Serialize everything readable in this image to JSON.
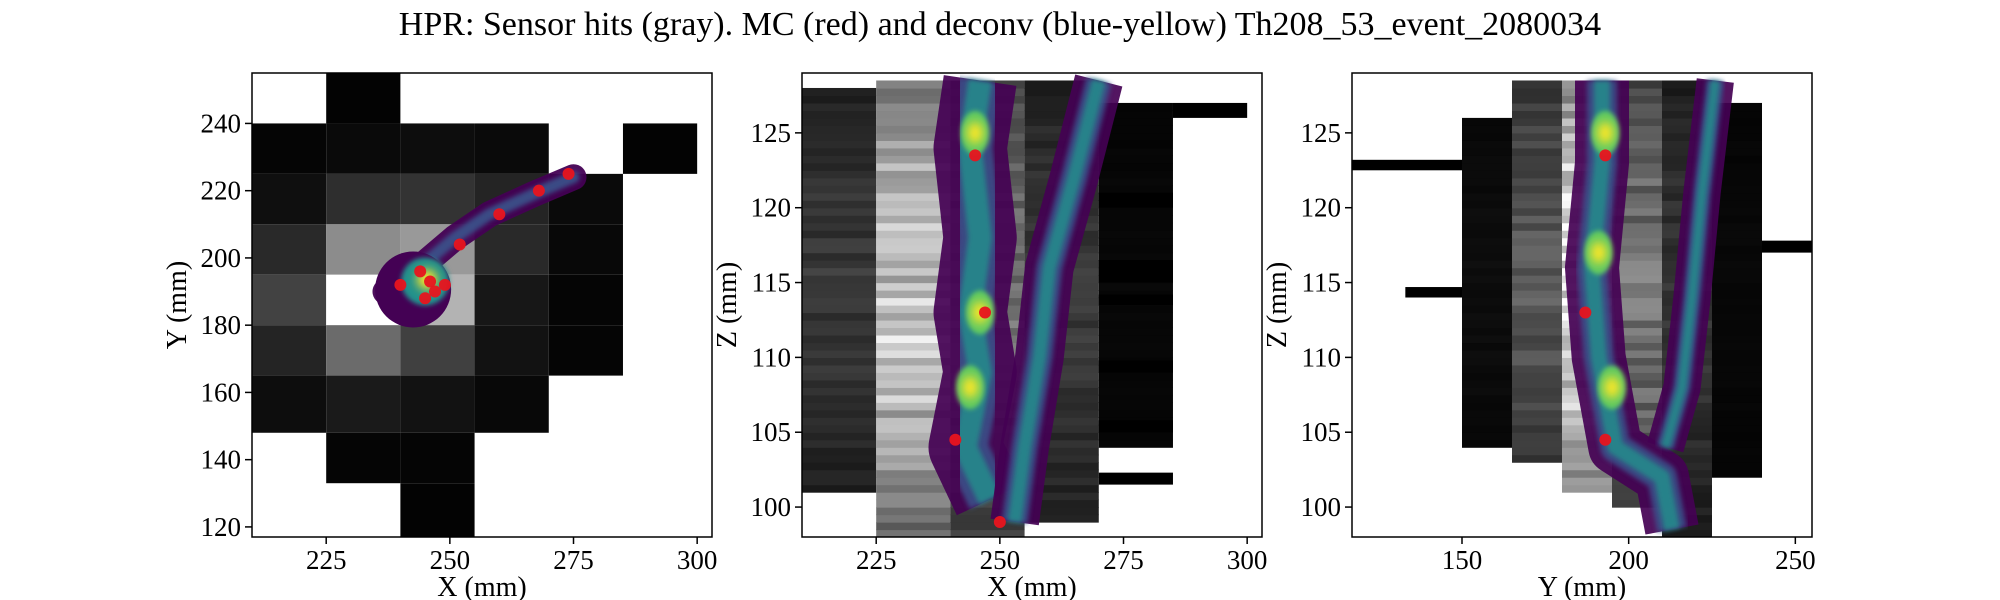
{
  "figure": {
    "title": "HPR: Sensor hits (gray). MC (red) and deconv (blue-yellow) Th208_53_event_2080034"
  },
  "colors": {
    "mc": "#e8141e",
    "deconv_low": "#440154",
    "deconv_mid": "#21918c",
    "deconv_high": "#fde725"
  },
  "chart_data": [
    {
      "type": "heatmap",
      "name": "panel-xy",
      "xlabel": "X (mm)",
      "ylabel": "Y (mm)",
      "xlim": [
        210,
        303
      ],
      "ylim": [
        117,
        255
      ],
      "xticks": [
        225,
        250,
        275,
        300
      ],
      "yticks": [
        120,
        140,
        160,
        180,
        200,
        220,
        240
      ],
      "sensor_hits": [
        {
          "x0": 210,
          "x1": 225,
          "y0": 225,
          "y1": 240,
          "v": 0.02
        },
        {
          "x0": 210,
          "x1": 225,
          "y0": 210,
          "y1": 225,
          "v": 0.06
        },
        {
          "x0": 210,
          "x1": 225,
          "y0": 195,
          "y1": 210,
          "v": 0.16
        },
        {
          "x0": 210,
          "x1": 225,
          "y0": 180,
          "y1": 195,
          "v": 0.26
        },
        {
          "x0": 210,
          "x1": 225,
          "y0": 165,
          "y1": 180,
          "v": 0.14
        },
        {
          "x0": 210,
          "x1": 225,
          "y0": 148,
          "y1": 165,
          "v": 0.05
        },
        {
          "x0": 225,
          "x1": 240,
          "y0": 240,
          "y1": 255,
          "v": 0.01
        },
        {
          "x0": 225,
          "x1": 240,
          "y0": 225,
          "y1": 240,
          "v": 0.04
        },
        {
          "x0": 225,
          "x1": 240,
          "y0": 210,
          "y1": 225,
          "v": 0.18
        },
        {
          "x0": 225,
          "x1": 240,
          "y0": 195,
          "y1": 210,
          "v": 0.55
        },
        {
          "x0": 225,
          "x1": 240,
          "y0": 180,
          "y1": 195,
          "v": 1.0
        },
        {
          "x0": 225,
          "x1": 240,
          "y0": 165,
          "y1": 180,
          "v": 0.42
        },
        {
          "x0": 225,
          "x1": 240,
          "y0": 148,
          "y1": 165,
          "v": 0.1
        },
        {
          "x0": 225,
          "x1": 240,
          "y0": 133,
          "y1": 148,
          "v": 0.02
        },
        {
          "x0": 240,
          "x1": 255,
          "y0": 225,
          "y1": 240,
          "v": 0.05
        },
        {
          "x0": 240,
          "x1": 255,
          "y0": 210,
          "y1": 225,
          "v": 0.2
        },
        {
          "x0": 240,
          "x1": 255,
          "y0": 195,
          "y1": 210,
          "v": 0.6
        },
        {
          "x0": 240,
          "x1": 255,
          "y0": 180,
          "y1": 195,
          "v": 0.7
        },
        {
          "x0": 240,
          "x1": 255,
          "y0": 165,
          "y1": 180,
          "v": 0.25
        },
        {
          "x0": 240,
          "x1": 255,
          "y0": 148,
          "y1": 165,
          "v": 0.07
        },
        {
          "x0": 240,
          "x1": 255,
          "y0": 133,
          "y1": 148,
          "v": 0.02
        },
        {
          "x0": 240,
          "x1": 255,
          "y0": 117,
          "y1": 133,
          "v": 0.01
        },
        {
          "x0": 255,
          "x1": 270,
          "y0": 225,
          "y1": 240,
          "v": 0.04
        },
        {
          "x0": 255,
          "x1": 270,
          "y0": 210,
          "y1": 225,
          "v": 0.14
        },
        {
          "x0": 255,
          "x1": 270,
          "y0": 195,
          "y1": 210,
          "v": 0.16
        },
        {
          "x0": 255,
          "x1": 270,
          "y0": 180,
          "y1": 195,
          "v": 0.09
        },
        {
          "x0": 255,
          "x1": 270,
          "y0": 165,
          "y1": 180,
          "v": 0.07
        },
        {
          "x0": 255,
          "x1": 270,
          "y0": 148,
          "y1": 165,
          "v": 0.03
        },
        {
          "x0": 270,
          "x1": 285,
          "y0": 210,
          "y1": 225,
          "v": 0.04
        },
        {
          "x0": 270,
          "x1": 285,
          "y0": 195,
          "y1": 210,
          "v": 0.03
        },
        {
          "x0": 270,
          "x1": 285,
          "y0": 180,
          "y1": 195,
          "v": 0.02
        },
        {
          "x0": 270,
          "x1": 285,
          "y0": 165,
          "y1": 180,
          "v": 0.02
        },
        {
          "x0": 285,
          "x1": 300,
          "y0": 225,
          "y1": 240,
          "v": 0.01
        }
      ],
      "deconv_path": [
        [
          237,
          190
        ],
        [
          243,
          196
        ],
        [
          251,
          206
        ],
        [
          258,
          213
        ],
        [
          267,
          219
        ],
        [
          275,
          224
        ]
      ],
      "deconv_peak": [
        245,
        193
      ],
      "mc_points": [
        [
          240,
          192
        ],
        [
          244,
          196
        ],
        [
          246,
          193
        ],
        [
          247,
          190
        ],
        [
          249,
          192
        ],
        [
          245,
          188
        ],
        [
          252,
          204
        ],
        [
          260,
          213
        ],
        [
          268,
          220
        ],
        [
          274,
          225
        ]
      ]
    },
    {
      "type": "heatmap",
      "name": "panel-xz",
      "xlabel": "X (mm)",
      "ylabel": "Z (mm)",
      "xlim": [
        210,
        303
      ],
      "ylim": [
        98,
        129
      ],
      "xticks": [
        225,
        250,
        275,
        300
      ],
      "yticks": [
        100,
        105,
        110,
        115,
        120,
        125
      ],
      "sensor_columns": [
        {
          "x0": 210,
          "x1": 225,
          "z0": 101,
          "z1": 128,
          "v": 0.22
        },
        {
          "x0": 225,
          "x1": 240,
          "z0": 98,
          "z1": 128.5,
          "v": 0.78
        },
        {
          "x0": 240,
          "x1": 255,
          "z0": 98,
          "z1": 128.5,
          "v": 0.45
        },
        {
          "x0": 255,
          "x1": 270,
          "z0": 99,
          "z1": 128.5,
          "v": 0.22
        },
        {
          "x0": 270,
          "x1": 285,
          "z0": 104,
          "z1": 127,
          "v": 0.03
        }
      ],
      "sensor_stripes": [
        {
          "x0": 285,
          "x1": 300,
          "z0": 126,
          "z1": 127
        },
        {
          "x0": 270,
          "x1": 285,
          "z0": 120,
          "z1": 121
        },
        {
          "x0": 270,
          "x1": 285,
          "z0": 115,
          "z1": 116.5
        },
        {
          "x0": 270,
          "x1": 285,
          "z0": 113.5,
          "z1": 114.2
        },
        {
          "x0": 270,
          "x1": 285,
          "z0": 109,
          "z1": 109.8
        },
        {
          "x0": 270,
          "x1": 285,
          "z0": 105,
          "z1": 105.8
        },
        {
          "x0": 270,
          "x1": 285,
          "z0": 101.5,
          "z1": 102.3
        }
      ],
      "deconv_tracks": [
        {
          "width": 12,
          "points": [
            [
              246,
              128.5
            ],
            [
              244,
              124
            ],
            [
              246,
              118
            ],
            [
              244,
              113
            ],
            [
              246,
              109
            ],
            [
              243,
              104
            ],
            [
              248,
              100.5
            ]
          ]
        },
        {
          "width": 7,
          "points": [
            [
              270,
              128.5
            ],
            [
              265,
              122
            ],
            [
              260,
              116
            ],
            [
              258,
              110
            ],
            [
              255,
              104
            ],
            [
              253,
              99
            ]
          ]
        }
      ],
      "deconv_peaks": [
        [
          245,
          125
        ],
        [
          246,
          113
        ],
        [
          244,
          108
        ]
      ],
      "mc_points": [
        [
          245,
          123.5
        ],
        [
          247,
          113
        ],
        [
          241,
          104.5
        ],
        [
          250,
          99
        ]
      ]
    },
    {
      "type": "heatmap",
      "name": "panel-yz",
      "xlabel": "Y (mm)",
      "ylabel": "Z (mm)",
      "xlim": [
        117,
        255
      ],
      "ylim": [
        98,
        129
      ],
      "xticks": [
        150,
        200,
        250
      ],
      "yticks": [
        100,
        105,
        110,
        115,
        120,
        125
      ],
      "sensor_columns": [
        {
          "x0": 150,
          "x1": 165,
          "z0": 104,
          "z1": 126,
          "v": 0.05
        },
        {
          "x0": 165,
          "x1": 180,
          "z0": 103,
          "z1": 128.5,
          "v": 0.35
        },
        {
          "x0": 180,
          "x1": 195,
          "z0": 101,
          "z1": 128.5,
          "v": 0.9
        },
        {
          "x0": 195,
          "x1": 210,
          "z0": 100,
          "z1": 128.5,
          "v": 0.45
        },
        {
          "x0": 210,
          "x1": 225,
          "z0": 98,
          "z1": 128.5,
          "v": 0.2
        },
        {
          "x0": 225,
          "x1": 240,
          "z0": 102,
          "z1": 127,
          "v": 0.03
        }
      ],
      "sensor_stripes": [
        {
          "x0": 117,
          "x1": 150,
          "z0": 122.5,
          "z1": 123.2
        },
        {
          "x0": 133,
          "x1": 150,
          "z0": 114,
          "z1": 114.7
        },
        {
          "x0": 240,
          "x1": 255,
          "z0": 117,
          "z1": 117.8
        }
      ],
      "deconv_tracks": [
        {
          "width": 12,
          "points": [
            [
              192,
              128.5
            ],
            [
              192,
              123
            ],
            [
              189,
              116
            ],
            [
              191,
              110
            ],
            [
              196,
              104
            ],
            [
              210,
              102
            ],
            [
              213,
              98.5
            ]
          ]
        },
        {
          "width": 7,
          "points": [
            [
              226,
              128.5
            ],
            [
              222,
              121
            ],
            [
              219,
              114
            ],
            [
              216,
              108
            ],
            [
              211,
              104
            ]
          ]
        }
      ],
      "deconv_peaks": [
        [
          193,
          125
        ],
        [
          191,
          117
        ],
        [
          195,
          108
        ]
      ],
      "mc_points": [
        [
          193,
          123.5
        ],
        [
          187,
          113
        ],
        [
          193,
          104.5
        ]
      ]
    }
  ]
}
